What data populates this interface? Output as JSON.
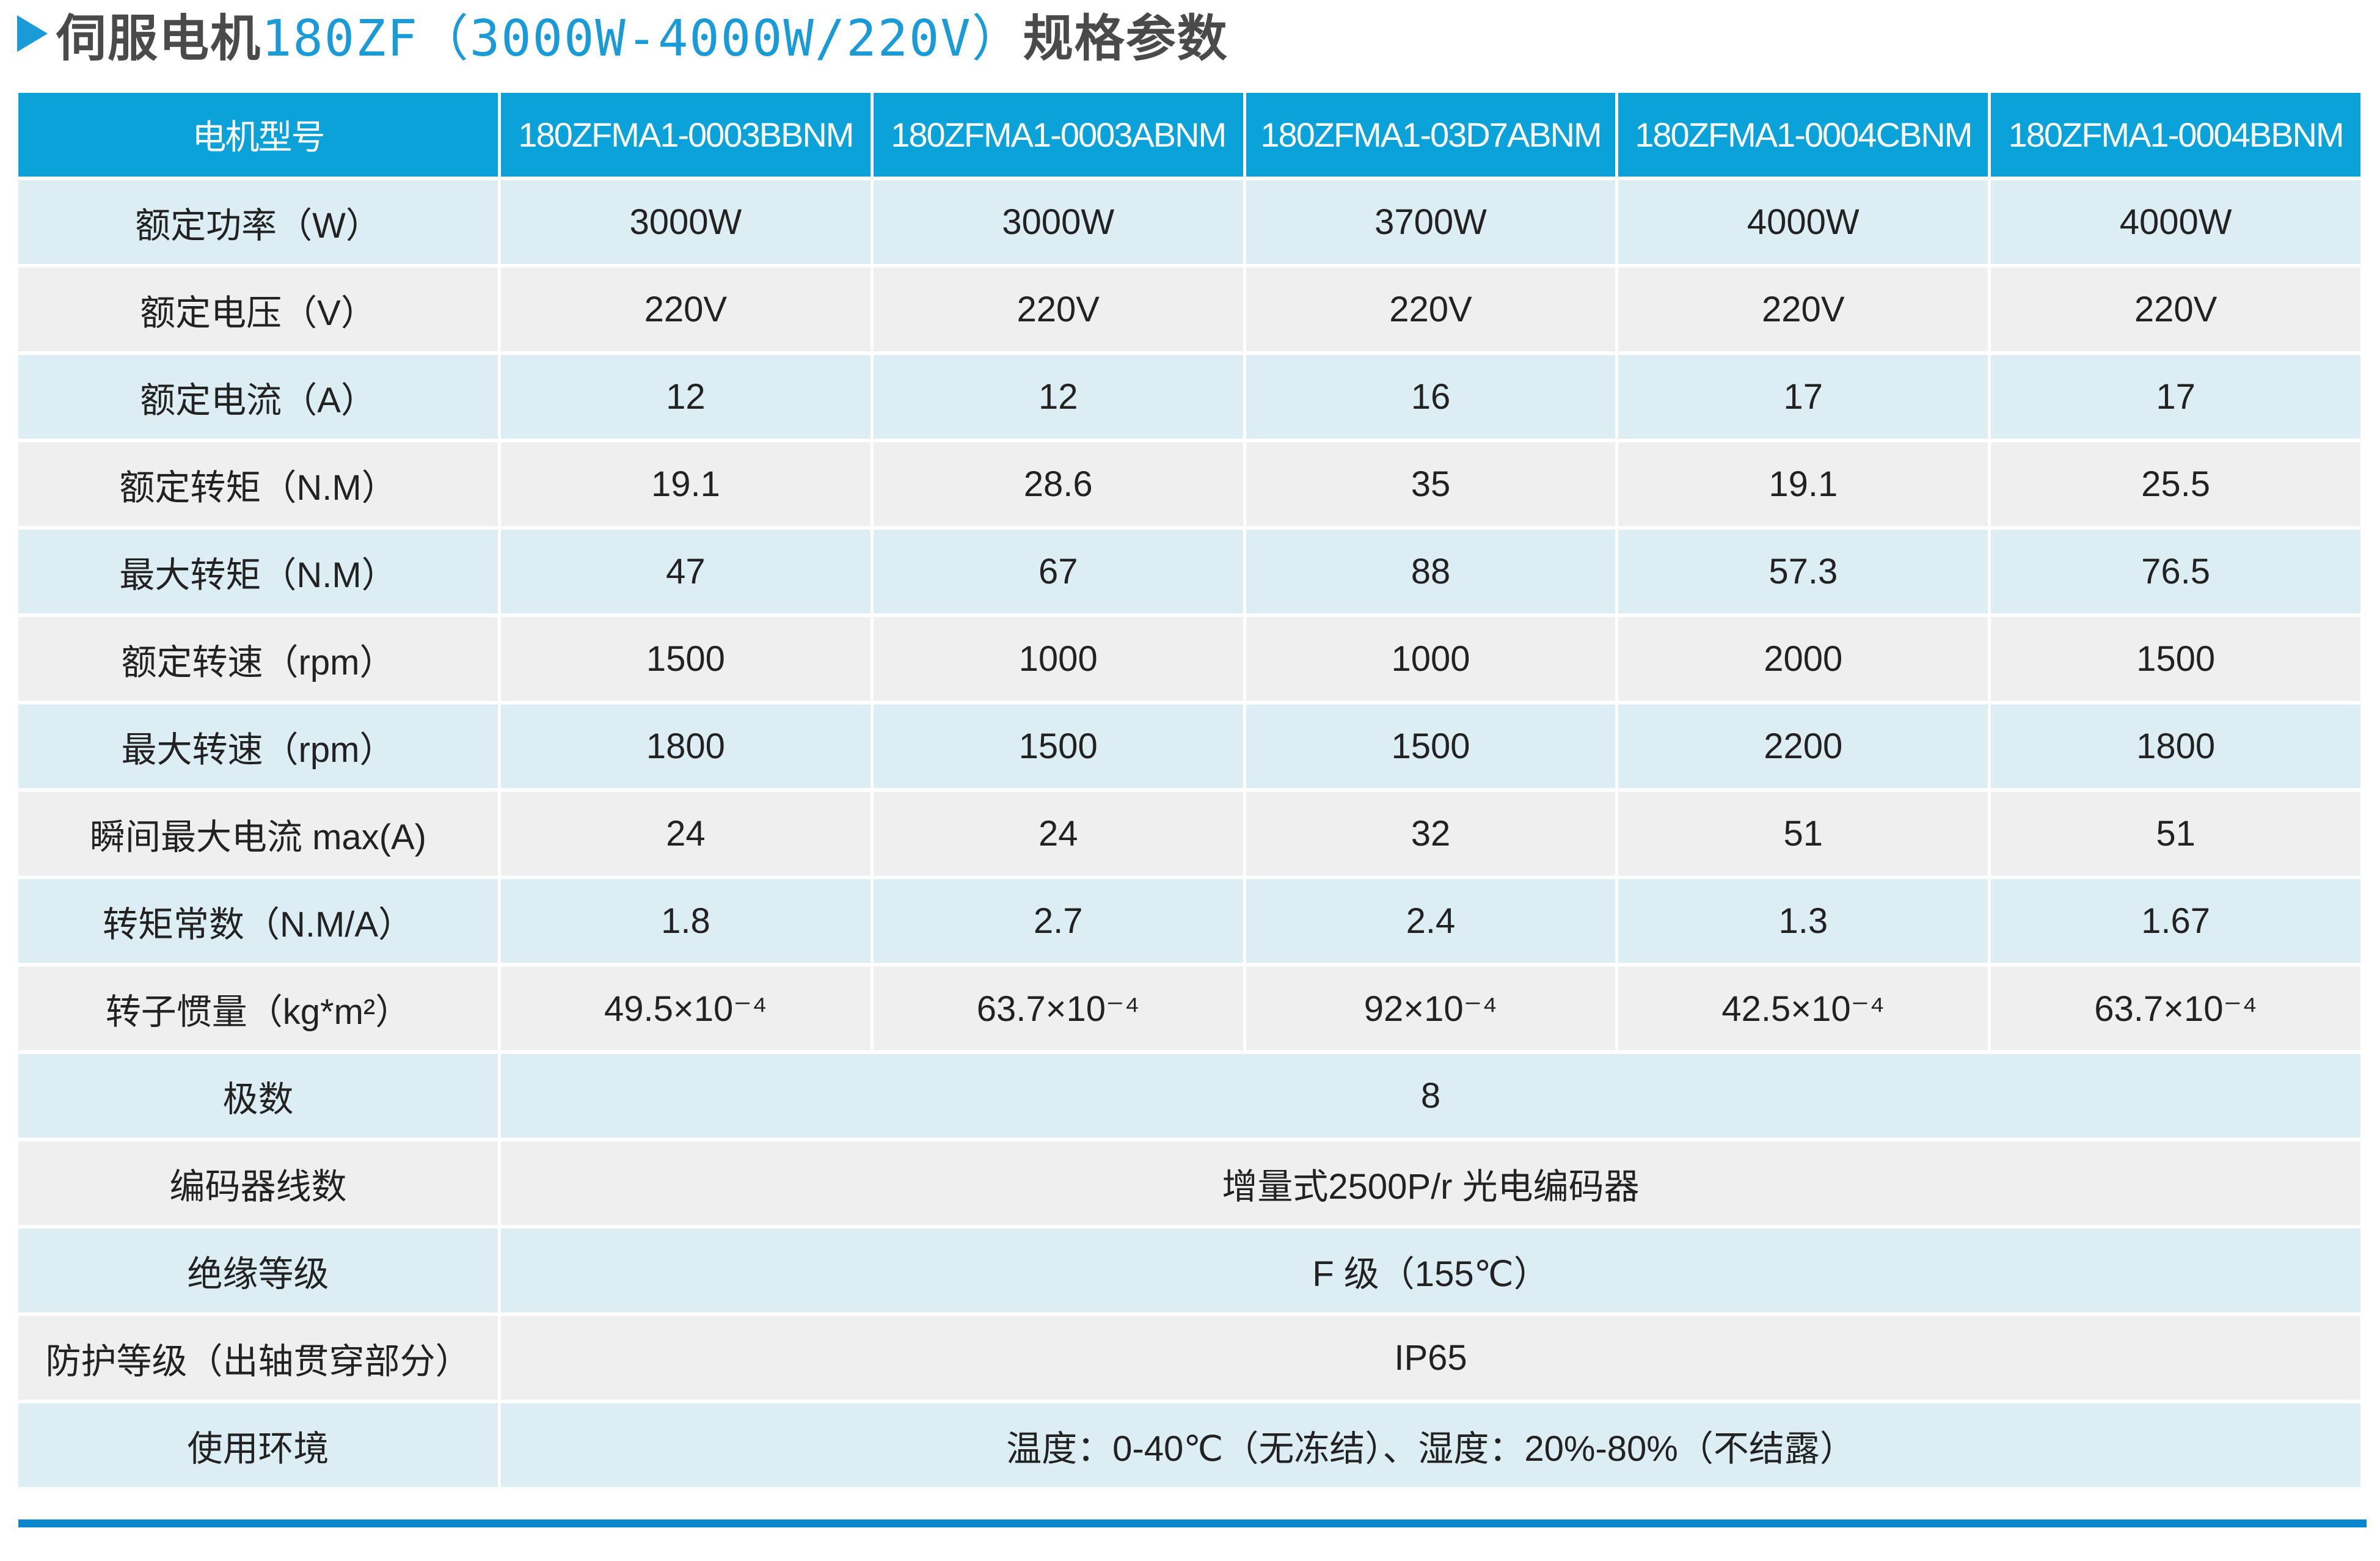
{
  "title": {
    "prefix": "伺服电机",
    "model": "180ZF（3000W-4000W/220V）",
    "suffix": "规格参数"
  },
  "colors": {
    "header_bg": "#0aa2d8",
    "accent": "#1a9ad6",
    "row_blue": "#dcedf4",
    "row_gray": "#efefef",
    "bottom_bar": "#0a86cc"
  },
  "table": {
    "header": [
      "电机型号",
      "180ZFMA1-0003BBNM",
      "180ZFMA1-0003ABNM",
      "180ZFMA1-03D7ABNM",
      "180ZFMA1-0004CBNM",
      "180ZFMA1-0004BBNM"
    ],
    "rows": [
      {
        "label": "额定功率（W）",
        "values": [
          "3000W",
          "3000W",
          "3700W",
          "4000W",
          "4000W"
        ]
      },
      {
        "label": "额定电压（V）",
        "values": [
          "220V",
          "220V",
          "220V",
          "220V",
          "220V"
        ]
      },
      {
        "label": "额定电流（A）",
        "values": [
          "12",
          "12",
          "16",
          "17",
          "17"
        ]
      },
      {
        "label": "额定转矩（N.M）",
        "values": [
          "19.1",
          "28.6",
          "35",
          "19.1",
          "25.5"
        ]
      },
      {
        "label": "最大转矩（N.M）",
        "values": [
          "47",
          "67",
          "88",
          "57.3",
          "76.5"
        ]
      },
      {
        "label": "额定转速（rpm）",
        "values": [
          "1500",
          "1000",
          "1000",
          "2000",
          "1500"
        ]
      },
      {
        "label": "最大转速（rpm）",
        "values": [
          "1800",
          "1500",
          "1500",
          "2200",
          "1800"
        ]
      },
      {
        "label": "瞬间最大电流 max(A)",
        "values": [
          "24",
          "24",
          "32",
          "51",
          "51"
        ]
      },
      {
        "label": "转矩常数（N.M/A）",
        "values": [
          "1.8",
          "2.7",
          "2.4",
          "1.3",
          "1.67"
        ]
      },
      {
        "label": "转子惯量（kg*m²）",
        "values": [
          "49.5×10⁻⁴",
          "63.7×10⁻⁴",
          "92×10⁻⁴",
          "42.5×10⁻⁴",
          "63.7×10⁻⁴"
        ]
      },
      {
        "label": "极数",
        "values": [
          "8"
        ]
      },
      {
        "label": "编码器线数",
        "values": [
          "增量式2500P/r 光电编码器"
        ]
      },
      {
        "label": "绝缘等级",
        "values": [
          "F 级（155℃）"
        ]
      },
      {
        "label": "防护等级（出轴贯穿部分）",
        "values": [
          "IP65"
        ]
      },
      {
        "label": "使用环境",
        "values": [
          "温度：0-40℃（无冻结）、湿度：20%-80%（不结露）"
        ]
      }
    ]
  }
}
